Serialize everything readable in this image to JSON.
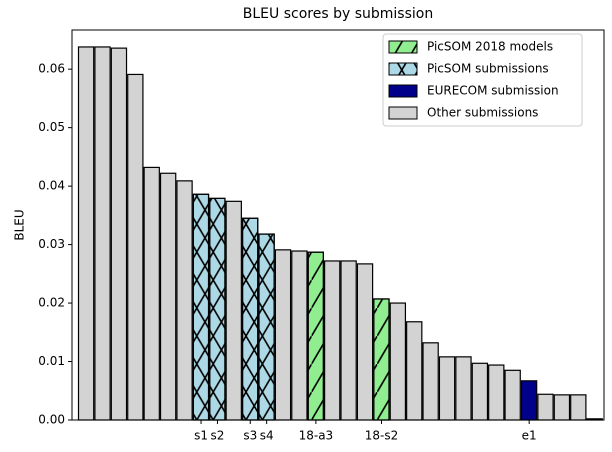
{
  "chart_data": {
    "type": "bar",
    "title": "BLEU scores by submission",
    "ylabel": "BLEU",
    "categories": [
      null,
      null,
      null,
      null,
      null,
      null,
      null,
      "s1",
      "s2",
      null,
      "s3",
      "s4",
      null,
      null,
      "18-a3",
      null,
      null,
      null,
      "18-s2",
      null,
      null,
      null,
      null,
      null,
      null,
      null,
      null,
      "e1",
      null,
      null,
      null,
      null
    ],
    "series": [
      {
        "name": "PicSOM 2018 models",
        "color": "#90ee90",
        "hatch": "/",
        "values": [
          null,
          null,
          null,
          null,
          null,
          null,
          null,
          null,
          null,
          null,
          null,
          null,
          null,
          null,
          0.0287,
          null,
          null,
          null,
          0.0207,
          null,
          null,
          null,
          null,
          null,
          null,
          null,
          null,
          null,
          null,
          null,
          null,
          null
        ]
      },
      {
        "name": "PicSOM submissions",
        "color": "#add8e6",
        "hatch": "x",
        "values": [
          null,
          null,
          null,
          null,
          null,
          null,
          null,
          0.0386,
          0.0379,
          null,
          0.0345,
          0.0318,
          null,
          null,
          null,
          null,
          null,
          null,
          null,
          null,
          null,
          null,
          null,
          null,
          null,
          null,
          null,
          null,
          null,
          null,
          null,
          null
        ]
      },
      {
        "name": "EURECOM submission",
        "color": "#00008b",
        "hatch": null,
        "values": [
          null,
          null,
          null,
          null,
          null,
          null,
          null,
          null,
          null,
          null,
          null,
          null,
          null,
          null,
          null,
          null,
          null,
          null,
          null,
          null,
          null,
          null,
          null,
          null,
          null,
          null,
          null,
          0.0067,
          null,
          null,
          null,
          null
        ]
      },
      {
        "name": "Other submissions",
        "color": "#d3d3d3",
        "hatch": null,
        "values": [
          0.0638,
          0.0638,
          0.0636,
          0.0591,
          0.0432,
          0.0422,
          0.0409,
          null,
          null,
          0.0374,
          null,
          null,
          0.0291,
          0.0289,
          null,
          0.0272,
          0.0272,
          0.0267,
          null,
          0.02,
          0.0168,
          0.0132,
          0.0108,
          0.0108,
          0.0097,
          0.0094,
          0.0085,
          null,
          0.0044,
          0.0043,
          0.0043,
          0.0002
        ]
      }
    ],
    "ylim": [
      0,
      0.0667
    ],
    "yticks": [
      {
        "value": 0,
        "label": "0.00"
      },
      0.01,
      0.02,
      0.03,
      0.04,
      0.05,
      0.06
    ],
    "legend": "upper right",
    "grid": false
  }
}
